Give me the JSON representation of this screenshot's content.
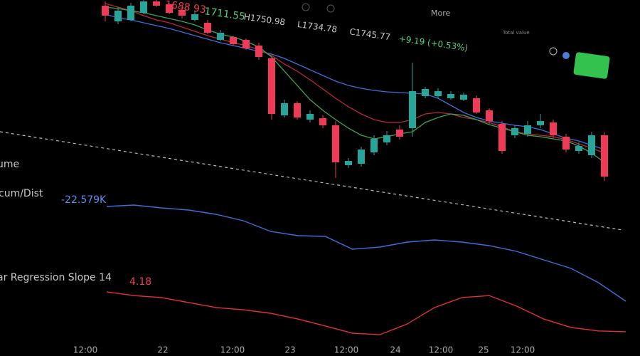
{
  "header": {
    "fragment": "1688 93",
    "last": "1711.55",
    "high": "H1750.98",
    "low": "L1734.78",
    "close": "C1745.77",
    "change": "+9.19 (+0.53%)",
    "menu": "More",
    "total": "Total value"
  },
  "chart_data": {
    "type": "candlestick",
    "up_color": "#26a69a",
    "down_color": "#ef3b57",
    "ylim": [
      1604,
      1760
    ],
    "open": [
      1755.2,
      1742,
      1743.2,
      1749.2,
      1758.8,
      1756.4,
      1751.6,
      1743.2,
      1740.8,
      1726.4,
      1728.8,
      1726.4,
      1721.6,
      1710.8,
      1662.8,
      1673,
      1659.2,
      1660.4,
      1654.4,
      1620.8,
      1622,
      1631.6,
      1640,
      1650.8,
      1652,
      1679,
      1679,
      1677.2,
      1676,
      1677.2,
      1667,
      1655.6,
      1646,
      1647.2,
      1654.4,
      1656.8,
      1644.8,
      1632.8,
      1629.2,
      1646
    ],
    "high": [
      1758.8,
      1754,
      1757.6,
      1760,
      1760,
      1757.6,
      1754,
      1750.4,
      1743.2,
      1734.8,
      1730,
      1727.6,
      1724,
      1712,
      1676,
      1674.8,
      1667,
      1662.8,
      1658,
      1626.8,
      1636.4,
      1646,
      1649.6,
      1654.4,
      1707.2,
      1686.8,
      1685.6,
      1683.2,
      1682,
      1679.6,
      1668.8,
      1658,
      1654.4,
      1658,
      1664,
      1659.2,
      1647.2,
      1640,
      1649,
      1648.4
    ],
    "low": [
      1742,
      1739.6,
      1742,
      1748,
      1754,
      1748,
      1744.4,
      1742,
      1731.2,
      1725.2,
      1721.6,
      1718,
      1709.6,
      1659.2,
      1661,
      1659.2,
      1656.8,
      1652,
      1610,
      1618.4,
      1619.6,
      1629.2,
      1637.6,
      1642.4,
      1644.8,
      1677.2,
      1677.2,
      1676,
      1674.8,
      1664,
      1655.6,
      1630.4,
      1643.6,
      1644.8,
      1652,
      1643.6,
      1631.6,
      1630.4,
      1626.8,
      1607.6
    ],
    "close": [
      1746.8,
      1751,
      1755.2,
      1758.8,
      1755.2,
      1749.2,
      1746.8,
      1748,
      1732.4,
      1732.4,
      1722.8,
      1719.2,
      1712,
      1664,
      1673,
      1661,
      1664,
      1654.4,
      1623.2,
      1624.4,
      1634,
      1643,
      1646,
      1644.8,
      1683.2,
      1685,
      1683.2,
      1680.8,
      1680.2,
      1665.2,
      1658,
      1632.8,
      1652,
      1654.4,
      1658,
      1646,
      1634,
      1637,
      1646,
      1611.2
    ],
    "series": [
      {
        "color": "#3d6fd6",
        "values": [
          1748,
          1745,
          1743.2,
          1740.8,
          1738.4,
          1736,
          1733,
          1730,
          1727,
          1724,
          1721.6,
          1719.2,
          1716.8,
          1714.4,
          1710.8,
          1706,
          1701.2,
          1696.4,
          1691.6,
          1688,
          1685.6,
          1683.8,
          1682.6,
          1682,
          1681.4,
          1680.8,
          1677.2,
          1671.2,
          1665.2,
          1661,
          1658,
          1656.2,
          1654.4,
          1653.2,
          1650.8,
          1647.2,
          1643.6,
          1641.2,
          1637.6,
          1634
        ]
      },
      {
        "color": "#b8283a",
        "values": [
          1757,
          1754,
          1751,
          1746.8,
          1743.2,
          1740.8,
          1737.2,
          1733.6,
          1730,
          1727,
          1724,
          1721.6,
          1718,
          1713.2,
          1706,
          1700,
          1692.8,
          1685,
          1677.2,
          1670,
          1664,
          1659.2,
          1656.8,
          1656.8,
          1659.2,
          1664,
          1665.2,
          1664,
          1661,
          1659.2,
          1656.8,
          1653.2,
          1649,
          1647.2,
          1646,
          1644.8,
          1642.4,
          1638.8,
          1635.2,
          1631
        ]
      },
      {
        "color": "#3aa55a",
        "values": [
          1754,
          1752.8,
          1751,
          1749.2,
          1746.8,
          1744.4,
          1742,
          1739,
          1734.8,
          1731.2,
          1728.8,
          1725.2,
          1720.4,
          1712,
          1700,
          1688,
          1676,
          1667,
          1659.2,
          1652,
          1646,
          1643,
          1644.8,
          1647.2,
          1649,
          1656.8,
          1661,
          1664,
          1662.8,
          1659.2,
          1655,
          1652,
          1649,
          1646,
          1644.8,
          1643,
          1641.2,
          1637,
          1631,
          1623.2
        ]
      }
    ]
  },
  "indicators": [
    {
      "name": "ume"
    },
    {
      "name": "cum/Dist",
      "label": "-22.579K",
      "color": "#3d6fd6",
      "ylim": [
        -36,
        -22
      ],
      "values": [
        -22.5,
        -22.3,
        -22.7,
        -23,
        -23.6,
        -24.5,
        -26,
        -26.6,
        -26.7,
        -28.5,
        -28.2,
        -27.5,
        -27.2,
        -27.5,
        -28,
        -28.8,
        -30,
        -31.2,
        -33.2,
        -35.8
      ]
    },
    {
      "name": "ar Regression Slope 14",
      "label": "4.18",
      "color": "#e0313c",
      "ylim": [
        -10,
        10
      ],
      "values": [
        8.6,
        7.1,
        6.3,
        4.3,
        2.3,
        1.4,
        0,
        -2.3,
        -5.1,
        -8,
        -8.6,
        -4.3,
        2.3,
        6.3,
        7.1,
        2.9,
        -2.3,
        -5.7,
        -7.1,
        -7.4
      ]
    }
  ],
  "time_axis": [
    "12:00",
    "22",
    "12:00",
    "23",
    "12:00",
    "24",
    "12:00",
    "25",
    "12:00"
  ]
}
